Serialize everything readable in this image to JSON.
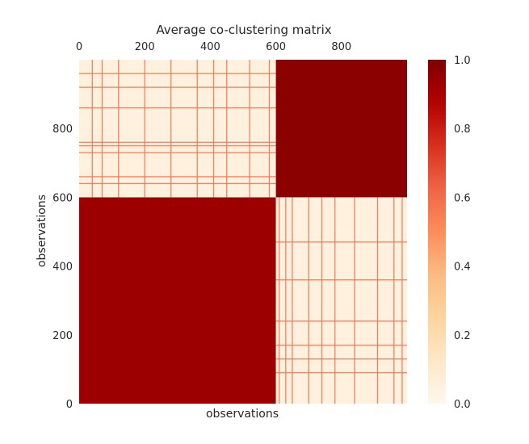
{
  "chart_data": {
    "type": "heatmap",
    "title": "Average co-clustering matrix",
    "xlabel": "observations",
    "ylabel": "observations",
    "xlim": [
      0,
      1000
    ],
    "ylim": [
      0,
      1000
    ],
    "x_ticks": [
      0,
      200,
      400,
      600,
      800
    ],
    "y_ticks": [
      0,
      200,
      400,
      600,
      800
    ],
    "x_tick_position": "top",
    "colormap": "OrRd",
    "colormap_stops": [
      "#fff7ec",
      "#fee8c8",
      "#fdd49e",
      "#fdbb84",
      "#fc8d59",
      "#ef6548",
      "#d7301f",
      "#b30000",
      "#7f0000"
    ],
    "colorbar": {
      "range": [
        0,
        1
      ],
      "ticks": [
        "0.0",
        "0.2",
        "0.4",
        "0.6",
        "0.8",
        "1.0"
      ]
    },
    "clusters": [
      {
        "start": 0,
        "end": 600,
        "within_cluster_value": 0.93
      },
      {
        "start": 600,
        "end": 1000,
        "within_cluster_value": 0.97
      }
    ],
    "between_cluster_value": 0.05,
    "stripes_in_lower_right_block": {
      "x": [
        610,
        630,
        650,
        700,
        740,
        780,
        840,
        910,
        960,
        985
      ],
      "y": [
        90,
        130,
        170,
        240,
        360,
        470
      ]
    },
    "stripes_in_upper_left_block": {
      "x": [
        40,
        70,
        120,
        200,
        280,
        360,
        410,
        450,
        520,
        580
      ],
      "y": [
        640,
        660,
        730,
        750,
        760,
        860,
        920,
        960
      ]
    }
  }
}
